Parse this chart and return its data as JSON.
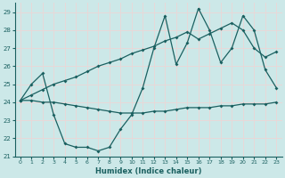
{
  "xlabel": "Humidex (Indice chaleur)",
  "ylabel": "",
  "xlim": [
    -0.5,
    23.5
  ],
  "ylim": [
    21,
    29.5
  ],
  "yticks": [
    21,
    22,
    23,
    24,
    25,
    26,
    27,
    28,
    29
  ],
  "xticks": [
    0,
    1,
    2,
    3,
    4,
    5,
    6,
    7,
    8,
    9,
    10,
    11,
    12,
    13,
    14,
    15,
    16,
    17,
    18,
    19,
    20,
    21,
    22,
    23
  ],
  "bg_color": "#cce8e8",
  "line_color": "#1a6060",
  "grid_color": "#e8d8d8",
  "line1_x": [
    0,
    1,
    2,
    3,
    4,
    5,
    6,
    7,
    8,
    9,
    10,
    11,
    12,
    13,
    14,
    15,
    16,
    17,
    18,
    19,
    20,
    21,
    22,
    23
  ],
  "line1_y": [
    24.1,
    25.0,
    25.6,
    23.3,
    21.7,
    21.5,
    21.5,
    21.3,
    21.5,
    22.5,
    23.3,
    24.8,
    27.0,
    28.8,
    26.1,
    27.3,
    29.2,
    28.0,
    26.2,
    27.0,
    28.8,
    28.0,
    25.8,
    24.8
  ],
  "line2_x": [
    0,
    1,
    2,
    3,
    4,
    5,
    6,
    7,
    8,
    9,
    10,
    11,
    12,
    13,
    14,
    15,
    16,
    17,
    18,
    19,
    20,
    21,
    22,
    23
  ],
  "line2_y": [
    24.1,
    24.4,
    24.7,
    25.0,
    25.2,
    25.4,
    25.7,
    26.0,
    26.2,
    26.4,
    26.7,
    26.9,
    27.1,
    27.4,
    27.6,
    27.9,
    27.5,
    27.8,
    28.1,
    28.4,
    28.0,
    27.0,
    26.5,
    26.8
  ],
  "line3_x": [
    0,
    1,
    2,
    3,
    4,
    5,
    6,
    7,
    8,
    9,
    10,
    11,
    12,
    13,
    14,
    15,
    16,
    17,
    18,
    19,
    20,
    21,
    22,
    23
  ],
  "line3_y": [
    24.1,
    24.1,
    24.0,
    24.0,
    23.9,
    23.8,
    23.7,
    23.6,
    23.5,
    23.4,
    23.4,
    23.4,
    23.5,
    23.5,
    23.6,
    23.7,
    23.7,
    23.7,
    23.8,
    23.8,
    23.9,
    23.9,
    23.9,
    24.0
  ]
}
